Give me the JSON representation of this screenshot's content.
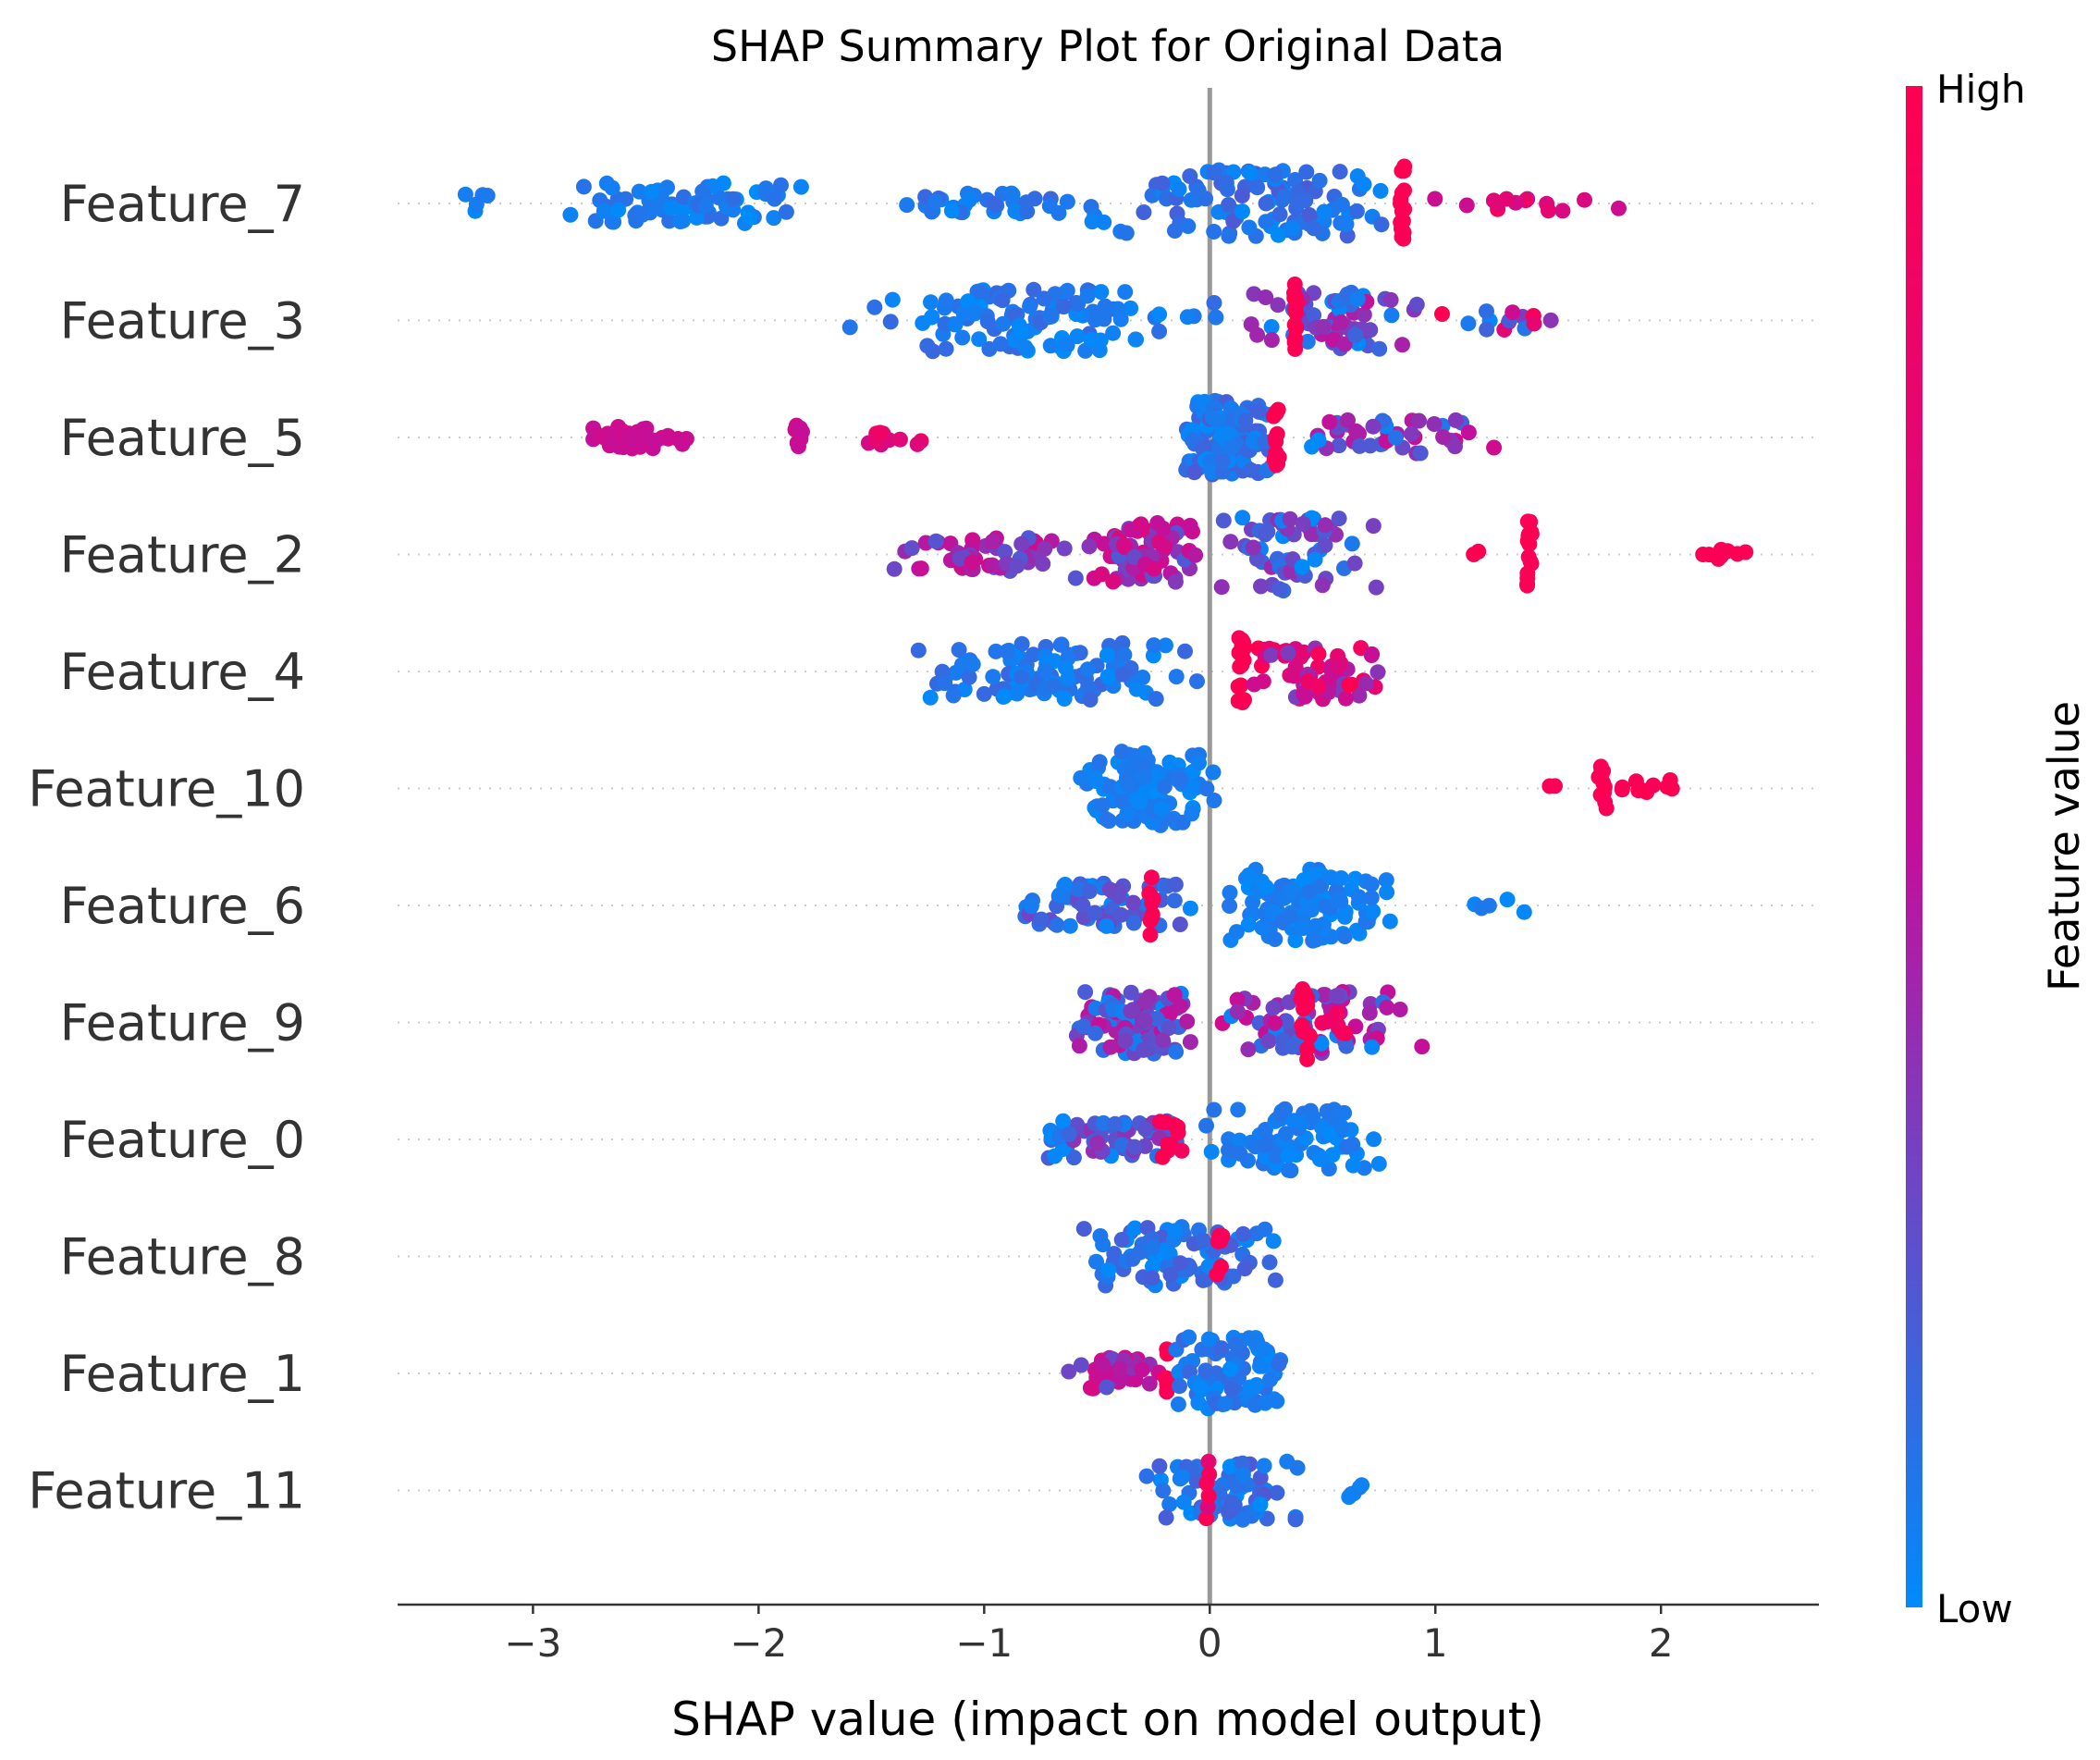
{
  "chart_data": {
    "type": "scatter",
    "subtype": "shap-beeswarm",
    "title": "SHAP Summary Plot for Original Data",
    "xlabel": "SHAP value (impact on model output)",
    "xlim": [
      -3.6,
      2.7
    ],
    "xticks": [
      -3,
      -2,
      -1,
      0,
      1,
      2
    ],
    "xtick_labels": [
      "−3",
      "−2",
      "−1",
      "0",
      "1",
      "2"
    ],
    "zero_line": true,
    "colorbar": {
      "title": "Feature value",
      "high_label": "High",
      "low_label": "Low",
      "low_color": "#008bfb",
      "mid_color": "#c40f9a",
      "high_color": "#ff0051"
    },
    "features": [
      {
        "name": "Feature_7",
        "clusters": [
          {
            "min": -3.3,
            "max": -3.2,
            "n": 5,
            "spread": 0.25,
            "low": 0.0,
            "high": 0.1
          },
          {
            "min": -2.9,
            "max": -1.7,
            "n": 75,
            "spread": 0.55,
            "low": 0.0,
            "high": 0.12
          },
          {
            "min": -1.45,
            "max": -0.55,
            "n": 35,
            "spread": 0.3,
            "low": 0.0,
            "high": 0.15
          },
          {
            "min": -0.55,
            "max": 0.85,
            "n": 110,
            "spread": 0.9,
            "low": 0.0,
            "high": 0.2
          },
          {
            "min": 0.84,
            "max": 0.87,
            "n": 18,
            "spread": 1.0,
            "low": 0.95,
            "high": 1.0
          },
          {
            "min": 0.9,
            "max": 1.95,
            "n": 14,
            "spread": 0.2,
            "low": 0.4,
            "high": 1.0
          }
        ]
      },
      {
        "name": "Feature_3",
        "clusters": [
          {
            "min": -1.6,
            "max": 0.1,
            "n": 120,
            "spread": 0.85,
            "low": 0.0,
            "high": 0.15
          },
          {
            "min": 0.1,
            "max": 1.0,
            "n": 70,
            "spread": 0.8,
            "low": 0.0,
            "high": 0.5
          },
          {
            "min": 0.37,
            "max": 0.39,
            "n": 14,
            "spread": 1.0,
            "low": 0.95,
            "high": 1.0
          },
          {
            "min": 0.95,
            "max": 1.6,
            "n": 14,
            "spread": 0.25,
            "low": 0.0,
            "high": 1.0
          }
        ]
      },
      {
        "name": "Feature_5",
        "clusters": [
          {
            "min": -2.8,
            "max": -2.3,
            "n": 40,
            "spread": 0.3,
            "low": 0.5,
            "high": 0.6
          },
          {
            "min": -1.85,
            "max": -1.8,
            "n": 10,
            "spread": 0.35,
            "low": 0.5,
            "high": 0.6
          },
          {
            "min": -1.6,
            "max": -1.25,
            "n": 10,
            "spread": 0.2,
            "low": 0.6,
            "high": 0.9
          },
          {
            "min": -0.15,
            "max": 0.3,
            "n": 130,
            "spread": 1.0,
            "low": 0.0,
            "high": 0.2
          },
          {
            "min": 0.28,
            "max": 0.31,
            "n": 14,
            "spread": 0.9,
            "low": 0.95,
            "high": 1.0
          },
          {
            "min": 0.3,
            "max": 1.3,
            "n": 45,
            "spread": 0.5,
            "low": 0.0,
            "high": 0.6
          }
        ]
      },
      {
        "name": "Feature_2",
        "clusters": [
          {
            "min": -1.4,
            "max": -0.6,
            "n": 50,
            "spread": 0.45,
            "low": 0.2,
            "high": 0.6
          },
          {
            "min": -0.6,
            "max": 0.0,
            "n": 70,
            "spread": 0.85,
            "low": 0.2,
            "high": 0.7
          },
          {
            "min": 0.0,
            "max": 0.8,
            "n": 65,
            "spread": 1.0,
            "low": 0.0,
            "high": 0.4
          },
          {
            "min": 1.15,
            "max": 1.2,
            "n": 2,
            "spread": 0.1,
            "low": 0.95,
            "high": 1.0
          },
          {
            "min": 1.4,
            "max": 1.43,
            "n": 16,
            "spread": 0.9,
            "low": 0.95,
            "high": 1.0
          },
          {
            "min": 2.1,
            "max": 2.4,
            "n": 8,
            "spread": 0.25,
            "low": 0.95,
            "high": 1.0
          }
        ]
      },
      {
        "name": "Feature_4",
        "clusters": [
          {
            "min": -1.35,
            "max": 0.0,
            "n": 110,
            "spread": 0.8,
            "low": 0.0,
            "high": 0.15
          },
          {
            "min": 0.12,
            "max": 0.16,
            "n": 16,
            "spread": 1.0,
            "low": 0.95,
            "high": 1.0
          },
          {
            "min": 0.15,
            "max": 0.8,
            "n": 65,
            "spread": 0.75,
            "low": 0.3,
            "high": 1.0
          }
        ]
      },
      {
        "name": "Feature_10",
        "clusters": [
          {
            "min": -0.6,
            "max": 0.05,
            "n": 110,
            "spread": 1.0,
            "low": 0.0,
            "high": 0.1
          },
          {
            "min": 1.5,
            "max": 1.55,
            "n": 2,
            "spread": 0.1,
            "low": 0.95,
            "high": 1.0
          },
          {
            "min": 1.72,
            "max": 1.76,
            "n": 12,
            "spread": 0.6,
            "low": 0.95,
            "high": 1.0
          },
          {
            "min": 1.75,
            "max": 2.1,
            "n": 10,
            "spread": 0.3,
            "low": 0.95,
            "high": 1.0
          }
        ]
      },
      {
        "name": "Feature_6",
        "clusters": [
          {
            "min": -0.95,
            "max": -0.05,
            "n": 70,
            "spread": 0.6,
            "low": 0.0,
            "high": 0.3
          },
          {
            "min": -0.27,
            "max": -0.25,
            "n": 8,
            "spread": 0.9,
            "low": 0.95,
            "high": 1.0
          },
          {
            "min": 0.0,
            "max": 0.85,
            "n": 110,
            "spread": 1.0,
            "low": 0.0,
            "high": 0.1
          },
          {
            "min": 1.05,
            "max": 1.45,
            "n": 5,
            "spread": 0.2,
            "low": 0.0,
            "high": 0.1
          }
        ]
      },
      {
        "name": "Feature_9",
        "clusters": [
          {
            "min": -0.65,
            "max": 0.0,
            "n": 100,
            "spread": 0.85,
            "low": 0.0,
            "high": 0.5
          },
          {
            "min": 0.0,
            "max": 0.95,
            "n": 70,
            "spread": 0.85,
            "low": 0.0,
            "high": 0.6
          },
          {
            "min": 0.4,
            "max": 0.45,
            "n": 16,
            "spread": 1.0,
            "low": 0.95,
            "high": 1.0
          },
          {
            "min": 0.45,
            "max": 0.65,
            "n": 6,
            "spread": 0.3,
            "low": 0.8,
            "high": 1.0
          }
        ]
      },
      {
        "name": "Feature_0",
        "clusters": [
          {
            "min": -0.8,
            "max": -0.05,
            "n": 60,
            "spread": 0.5,
            "low": 0.0,
            "high": 0.4
          },
          {
            "min": -0.25,
            "max": -0.1,
            "n": 10,
            "spread": 0.6,
            "low": 0.9,
            "high": 1.0
          },
          {
            "min": -0.05,
            "max": 0.8,
            "n": 80,
            "spread": 0.85,
            "low": 0.0,
            "high": 0.1
          }
        ]
      },
      {
        "name": "Feature_8",
        "clusters": [
          {
            "min": -0.6,
            "max": 0.3,
            "n": 90,
            "spread": 0.8,
            "low": 0.0,
            "high": 0.2
          },
          {
            "min": 0.03,
            "max": 0.06,
            "n": 6,
            "spread": 0.8,
            "low": 0.95,
            "high": 1.0
          }
        ]
      },
      {
        "name": "Feature_1",
        "clusters": [
          {
            "min": -0.65,
            "max": -0.2,
            "n": 35,
            "spread": 0.45,
            "low": 0.2,
            "high": 0.7
          },
          {
            "min": -0.2,
            "max": -0.18,
            "n": 8,
            "spread": 0.8,
            "low": 0.95,
            "high": 1.0
          },
          {
            "min": -0.2,
            "max": 0.4,
            "n": 90,
            "spread": 1.0,
            "low": 0.0,
            "high": 0.15
          }
        ]
      },
      {
        "name": "Feature_11",
        "clusters": [
          {
            "min": -0.3,
            "max": 0.45,
            "n": 80,
            "spread": 0.8,
            "low": 0.0,
            "high": 0.2
          },
          {
            "min": -0.02,
            "max": 0.0,
            "n": 6,
            "spread": 1.0,
            "low": 0.7,
            "high": 1.0
          },
          {
            "min": 0.6,
            "max": 0.7,
            "n": 5,
            "spread": 0.2,
            "low": 0.0,
            "high": 0.1
          }
        ]
      }
    ]
  }
}
